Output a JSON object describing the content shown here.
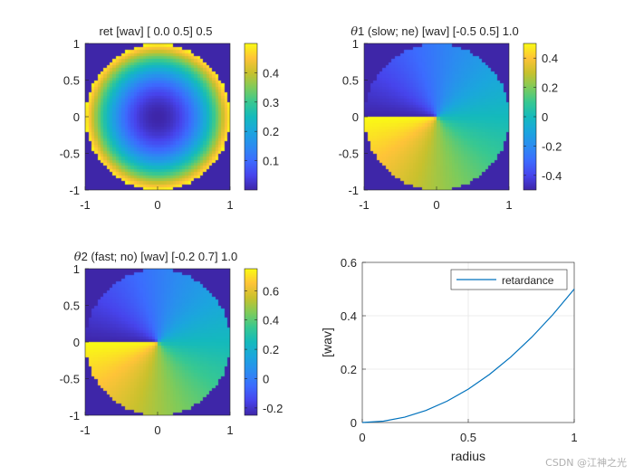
{
  "watermark": "CSDN @江神之光",
  "chart_data": [
    {
      "type": "heatmap",
      "kind": "retardance",
      "title": "ret [wav] [ 0.0  0.5]  0.5",
      "title_theta": false,
      "xlim": [
        -1,
        1
      ],
      "ylim": [
        -1,
        1
      ],
      "xticks": [
        "-1",
        "0",
        "1"
      ],
      "yticks": [
        "-1",
        "-0.5",
        "0",
        "0.5",
        "1"
      ],
      "clim": [
        0,
        0.5
      ],
      "colorbar_ticks": [
        "0.1",
        "0.2",
        "0.3",
        "0.4"
      ],
      "colorbar_values": [
        0.1,
        0.2,
        0.3,
        0.4
      ],
      "max_value": 0.5
    },
    {
      "type": "heatmap",
      "kind": "angle",
      "title": "1 (slow; ne) [wav] [-0.5  0.5]  1.0",
      "title_theta": true,
      "xlim": [
        -1,
        1
      ],
      "ylim": [
        -1,
        1
      ],
      "xticks": [
        "-1",
        "0",
        "1"
      ],
      "yticks": [
        "-1",
        "-0.5",
        "0",
        "0.5",
        "1"
      ],
      "clim": [
        -0.5,
        0.5
      ],
      "colorbar_ticks": [
        "-0.4",
        "-0.2",
        "0",
        "0.2",
        "0.4"
      ],
      "colorbar_values": [
        -0.4,
        -0.2,
        0,
        0.2,
        0.4
      ],
      "value_range": [
        -0.5,
        0.5
      ]
    },
    {
      "type": "heatmap",
      "kind": "angle",
      "title": "2 (fast; no) [wav] [-0.2  0.7]  1.0",
      "title_theta": true,
      "xlim": [
        -1,
        1
      ],
      "ylim": [
        -1,
        1
      ],
      "xticks": [
        "-1",
        "0",
        "1"
      ],
      "yticks": [
        "-1",
        "-0.5",
        "0",
        "0.5",
        "1"
      ],
      "clim": [
        -0.25,
        0.75
      ],
      "colorbar_ticks": [
        "-0.2",
        "0",
        "0.2",
        "0.4",
        "0.6"
      ],
      "colorbar_values": [
        -0.2,
        0,
        0.2,
        0.4,
        0.6
      ],
      "value_range": [
        -0.25,
        0.75
      ]
    },
    {
      "type": "line",
      "xlabel": "radius",
      "ylabel": "[wav]",
      "xlim": [
        0,
        1
      ],
      "ylim": [
        0,
        0.6
      ],
      "xticks": [
        "0",
        "0.5",
        "1"
      ],
      "xtick_values": [
        0,
        0.5,
        1
      ],
      "yticks": [
        "0",
        "0.2",
        "0.4",
        "0.6"
      ],
      "ytick_values": [
        0,
        0.2,
        0.4,
        0.6
      ],
      "grid": true,
      "legend_position": "top-right",
      "series": [
        {
          "name": "retardance",
          "color": "#0072bd",
          "x": [
            0,
            0.1,
            0.2,
            0.3,
            0.4,
            0.5,
            0.6,
            0.7,
            0.8,
            0.9,
            1.0
          ],
          "y": [
            0,
            0.005,
            0.02,
            0.045,
            0.08,
            0.125,
            0.18,
            0.245,
            0.32,
            0.405,
            0.5
          ]
        }
      ]
    }
  ]
}
